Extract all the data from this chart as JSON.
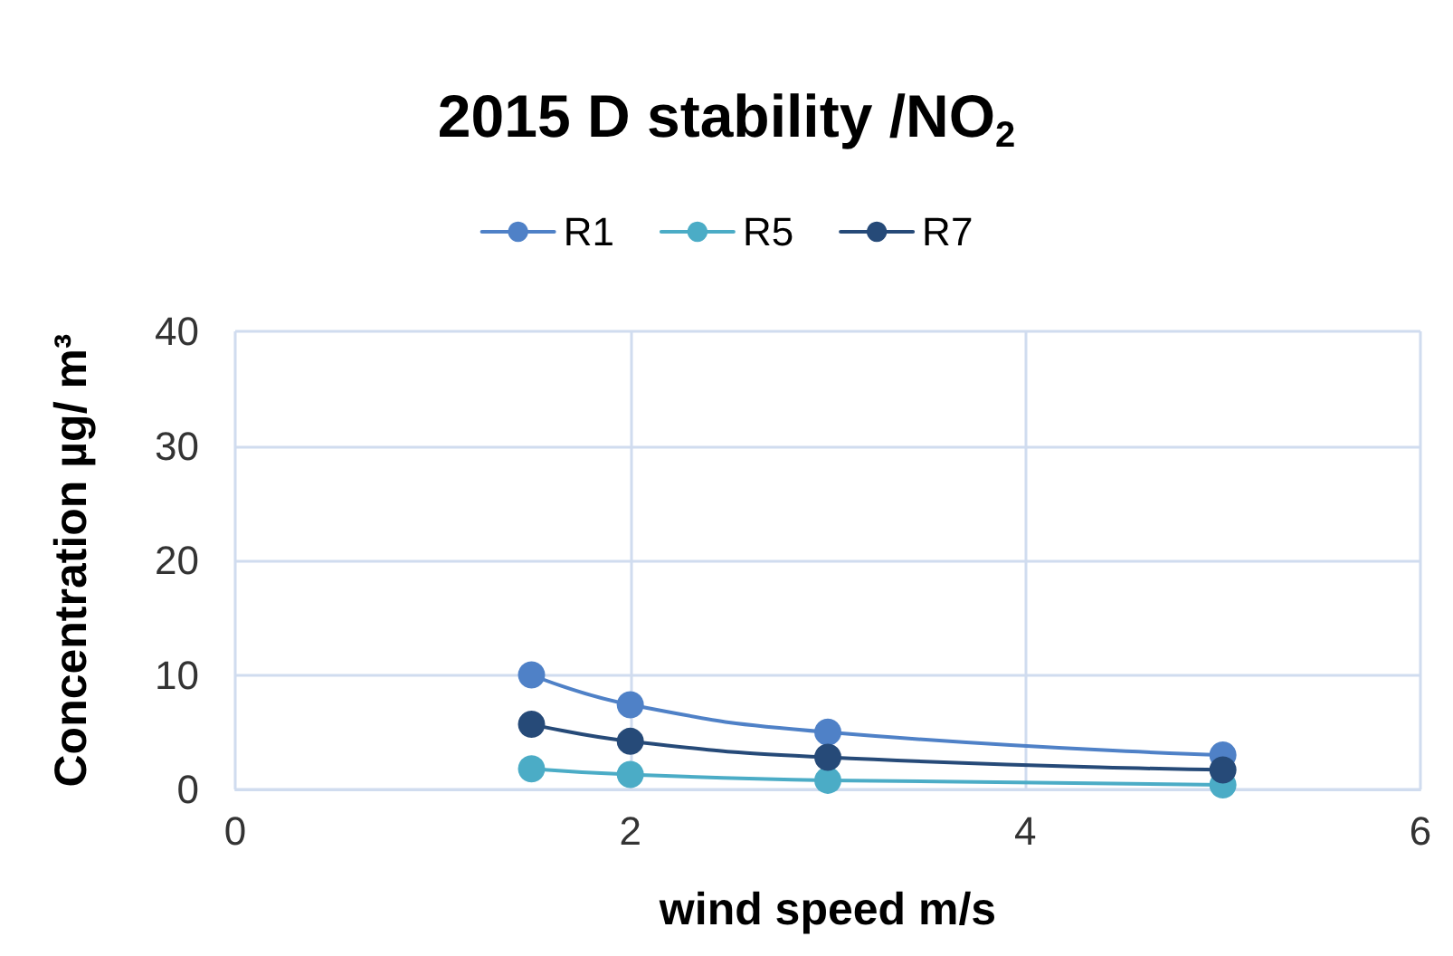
{
  "chart_data": {
    "type": "line",
    "title": "2015 D stability /NO$_{2}$",
    "xlabel": "wind speed m/s",
    "ylabel": "Concentration µg/ m³",
    "x": [
      1.5,
      2,
      3,
      5
    ],
    "series": [
      {
        "name": "R1",
        "color": "#4f81c7",
        "values": [
          10,
          7.4,
          5,
          3
        ]
      },
      {
        "name": "R5",
        "color": "#4bacc6",
        "values": [
          1.8,
          1.3,
          0.8,
          0.4
        ]
      },
      {
        "name": "R7",
        "color": "#264a78",
        "values": [
          5.7,
          4.2,
          2.8,
          1.7
        ]
      }
    ],
    "xlim": [
      0,
      6
    ],
    "xticks": [
      0,
      2,
      4,
      6
    ],
    "ylim": [
      0,
      40
    ],
    "yticks": [
      0,
      10,
      20,
      30,
      40
    ],
    "grid": true,
    "legend": "top",
    "marker": "circle",
    "line_style": "solid"
  }
}
